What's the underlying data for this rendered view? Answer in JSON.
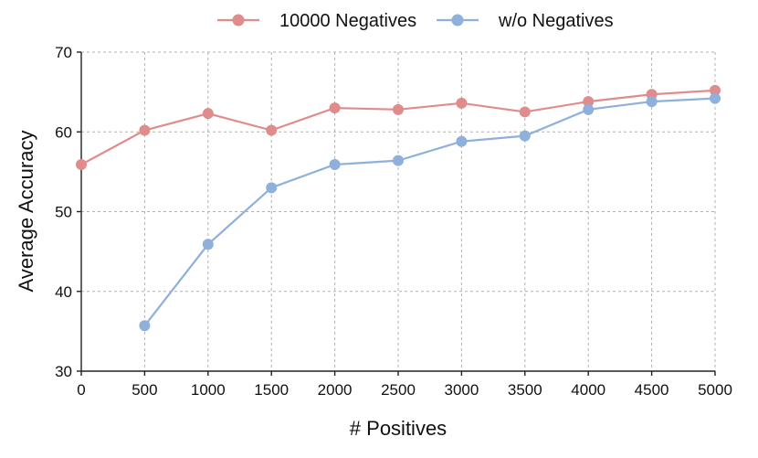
{
  "chart_data": {
    "type": "line",
    "xlabel": "# Positives",
    "ylabel": "Average Accuracy",
    "xlim": [
      0,
      5000
    ],
    "ylim": [
      30,
      70
    ],
    "xticks": [
      0,
      500,
      1000,
      1500,
      2000,
      2500,
      3000,
      3500,
      4000,
      4500,
      5000
    ],
    "yticks": [
      30,
      40,
      50,
      60,
      70
    ],
    "grid": true,
    "legend_position": "top-center",
    "series": [
      {
        "name": "10000 Negatives",
        "color": "#e08c8c",
        "x": [
          0,
          500,
          1000,
          1500,
          2000,
          2500,
          3000,
          3500,
          4000,
          4500,
          5000
        ],
        "y": [
          55.9,
          60.2,
          62.3,
          60.2,
          63.0,
          62.8,
          63.6,
          62.5,
          63.8,
          64.7,
          65.2
        ]
      },
      {
        "name": "w/o Negatives",
        "color": "#8fb0da",
        "x": [
          500,
          1000,
          1500,
          2000,
          2500,
          3000,
          3500,
          4000,
          4500,
          5000
        ],
        "y": [
          35.7,
          45.9,
          53.0,
          55.9,
          56.4,
          58.8,
          59.5,
          62.8,
          63.8,
          64.2
        ]
      }
    ]
  }
}
